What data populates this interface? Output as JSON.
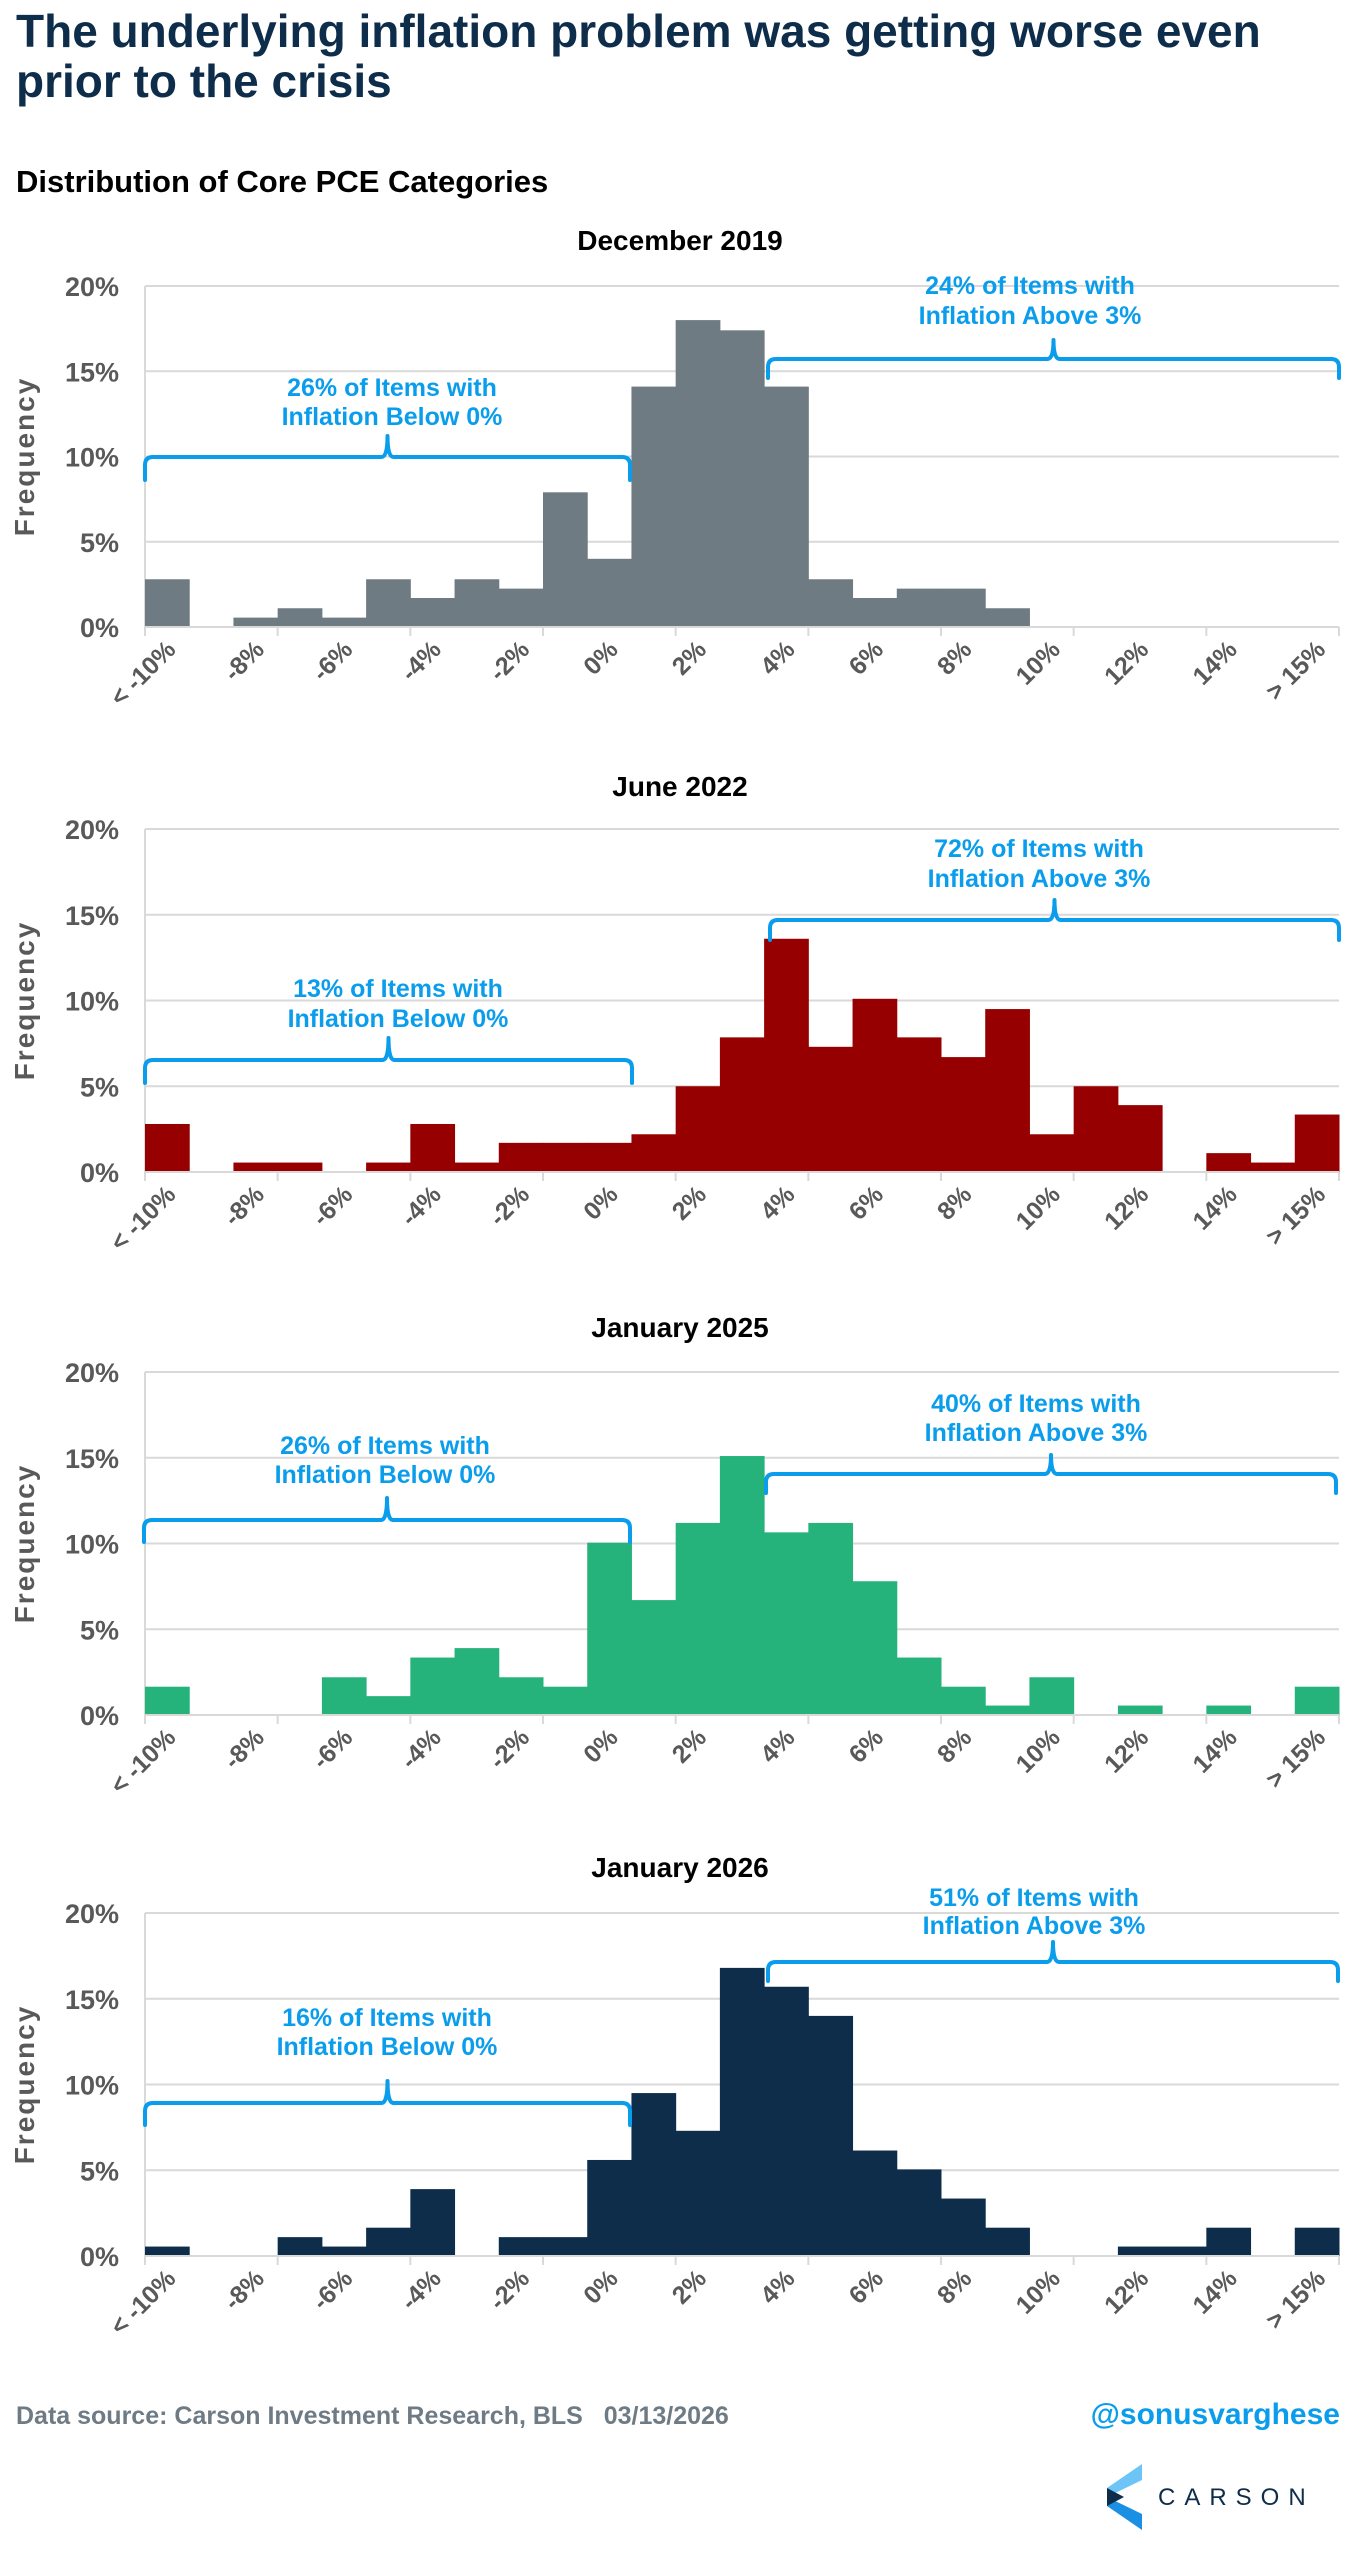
{
  "header": {
    "title": "The underlying inflation problem was getting worse even prior to the crisis",
    "subtitle": "Distribution of Core PCE Categories"
  },
  "footer": {
    "source": "Data source: Carson Investment Research, BLS   03/13/2026",
    "handle": "@sonusvarghese",
    "logo_text": "CARSON"
  },
  "colors": {
    "annotation": "#0A9DEC",
    "title": "#0E2D4A",
    "grid": "#D9D9D9",
    "tick_text": "#595959"
  },
  "chart_data": [
    {
      "type": "bar",
      "title": "December 2019",
      "ylabel": "Frequency",
      "xlabel": "",
      "ylim": [
        0,
        20
      ],
      "yticks": [
        "0%",
        "5%",
        "10%",
        "15%",
        "20%"
      ],
      "bins": [
        "< -10%",
        "-9%",
        "-8%",
        "-7%",
        "-6%",
        "-5%",
        "-4%",
        "-3%",
        "-2%",
        "-1%",
        "0%",
        "1%",
        "2%",
        "3%",
        "4%",
        "5%",
        "6%",
        "7%",
        "8%",
        "9%",
        "10%",
        "11%",
        "12%",
        "13%",
        "14%",
        "15%",
        "> 15%"
      ],
      "tick_labels": [
        "< -10%",
        "-8%",
        "-6%",
        "-4%",
        "-2%",
        "0%",
        "2%",
        "4%",
        "6%",
        "8%",
        "10%",
        "12%",
        "14%",
        "> 15%"
      ],
      "color": "#6E7B82",
      "values": [
        2.8,
        0,
        0.55,
        1.1,
        0.55,
        2.8,
        1.7,
        2.8,
        2.25,
        7.9,
        4.0,
        14.1,
        18.0,
        17.4,
        14.1,
        2.8,
        1.7,
        2.25,
        2.25,
        1.1,
        0,
        0,
        0,
        0,
        0,
        0,
        0
      ],
      "annotations": [
        {
          "line1": "26% of Items with",
          "line2": "Inflation Below 0%",
          "range": "below 0%"
        },
        {
          "line1": "24% of Items with",
          "line2": "Inflation Above 3%",
          "range": "above 3%"
        }
      ]
    },
    {
      "type": "bar",
      "title": "June 2022",
      "ylabel": "Frequency",
      "xlabel": "",
      "ylim": [
        0,
        20
      ],
      "yticks": [
        "0%",
        "5%",
        "10%",
        "15%",
        "20%"
      ],
      "bins": [
        "< -10%",
        "-9%",
        "-8%",
        "-7%",
        "-6%",
        "-5%",
        "-4%",
        "-3%",
        "-2%",
        "-1%",
        "0%",
        "1%",
        "2%",
        "3%",
        "4%",
        "5%",
        "6%",
        "7%",
        "8%",
        "9%",
        "10%",
        "11%",
        "12%",
        "13%",
        "14%",
        "15%",
        "> 15%"
      ],
      "tick_labels": [
        "< -10%",
        "-8%",
        "-6%",
        "-4%",
        "-2%",
        "0%",
        "2%",
        "4%",
        "6%",
        "8%",
        "10%",
        "12%",
        "14%",
        "> 15%"
      ],
      "color": "#960000",
      "values": [
        2.8,
        0,
        0.55,
        0.55,
        0,
        0.55,
        2.8,
        0.55,
        1.7,
        1.7,
        1.7,
        2.2,
        5.0,
        7.85,
        13.6,
        7.3,
        10.1,
        7.85,
        6.7,
        9.5,
        2.2,
        5.0,
        3.9,
        0,
        1.1,
        0.55,
        3.35
      ],
      "annotations": [
        {
          "line1": "13% of Items with",
          "line2": "Inflation Below 0%",
          "range": "below 0%"
        },
        {
          "line1": "72% of Items with",
          "line2": "Inflation Above 3%",
          "range": "above 3%"
        }
      ]
    },
    {
      "type": "bar",
      "title": "January 2025",
      "ylabel": "Frequency",
      "xlabel": "",
      "ylim": [
        0,
        20
      ],
      "yticks": [
        "0%",
        "5%",
        "10%",
        "15%",
        "20%"
      ],
      "bins": [
        "< -10%",
        "-9%",
        "-8%",
        "-7%",
        "-6%",
        "-5%",
        "-4%",
        "-3%",
        "-2%",
        "-1%",
        "0%",
        "1%",
        "2%",
        "3%",
        "4%",
        "5%",
        "6%",
        "7%",
        "8%",
        "9%",
        "10%",
        "11%",
        "12%",
        "13%",
        "14%",
        "15%",
        "> 15%"
      ],
      "tick_labels": [
        "< -10%",
        "-8%",
        "-6%",
        "-4%",
        "-2%",
        "0%",
        "2%",
        "4%",
        "6%",
        "8%",
        "10%",
        "12%",
        "14%",
        "> 15%"
      ],
      "color": "#26B27B",
      "values": [
        1.65,
        0,
        0,
        0,
        2.2,
        1.1,
        3.35,
        3.9,
        2.2,
        1.65,
        10.05,
        6.7,
        11.2,
        15.1,
        10.65,
        11.2,
        7.8,
        3.35,
        1.65,
        0.55,
        2.2,
        0,
        0.55,
        0,
        0.55,
        0,
        1.65
      ],
      "annotations": [
        {
          "line1": "26% of Items with",
          "line2": "Inflation Below 0%",
          "range": "below 0%"
        },
        {
          "line1": "40% of Items with",
          "line2": "Inflation Above 3%",
          "range": "above 3%"
        }
      ]
    },
    {
      "type": "bar",
      "title": "January 2026",
      "ylabel": "Frequency",
      "xlabel": "",
      "ylim": [
        0,
        20
      ],
      "yticks": [
        "0%",
        "5%",
        "10%",
        "15%",
        "20%"
      ],
      "bins": [
        "< -10%",
        "-9%",
        "-8%",
        "-7%",
        "-6%",
        "-5%",
        "-4%",
        "-3%",
        "-2%",
        "-1%",
        "0%",
        "1%",
        "2%",
        "3%",
        "4%",
        "5%",
        "6%",
        "7%",
        "8%",
        "9%",
        "10%",
        "11%",
        "12%",
        "13%",
        "14%",
        "15%",
        "> 15%"
      ],
      "tick_labels": [
        "< -10%",
        "-8%",
        "-6%",
        "-4%",
        "-2%",
        "0%",
        "2%",
        "4%",
        "6%",
        "8%",
        "10%",
        "12%",
        "14%",
        "> 15%"
      ],
      "color": "#0E2D4A",
      "values": [
        0.55,
        0,
        0,
        1.1,
        0.55,
        1.65,
        3.9,
        0,
        1.1,
        1.1,
        5.6,
        9.5,
        7.3,
        16.8,
        15.7,
        14.0,
        6.15,
        5.05,
        3.35,
        1.65,
        0,
        0,
        0.55,
        0.55,
        1.65,
        0,
        1.65
      ],
      "annotations": [
        {
          "line1": "16% of Items with",
          "line2": "Inflation Below 0%",
          "range": "below 0%"
        },
        {
          "line1": "51% of Items with",
          "line2": "Inflation Above 3%",
          "range": "above 3%"
        }
      ]
    }
  ]
}
